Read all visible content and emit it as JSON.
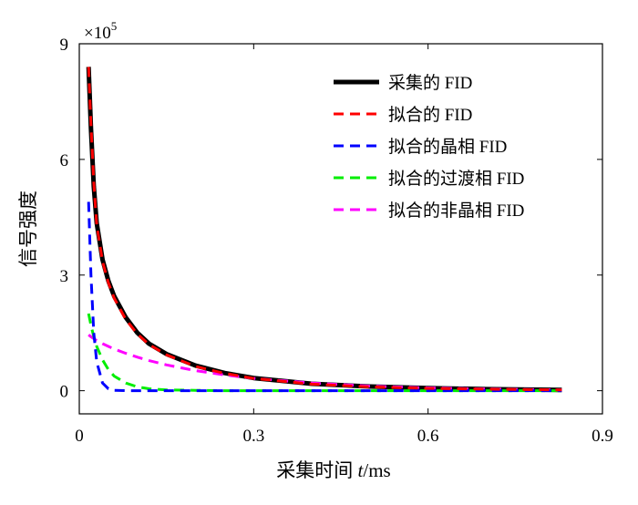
{
  "chart_data": {
    "type": "line",
    "title": "",
    "xlabel": "采集时间 t/ms",
    "xlabel_parts": [
      "采集时间 ",
      "t",
      "/ms"
    ],
    "ylabel": "信号强度",
    "y_multiplier": "×10",
    "y_multiplier_exp": "5",
    "xlim": [
      0,
      0.9
    ],
    "ylim": [
      -0.6,
      9
    ],
    "xticks": [
      0,
      0.3,
      0.6,
      0.9
    ],
    "xtick_labels": [
      "0",
      "0.3",
      "0.6",
      "0.9"
    ],
    "yticks": [
      0,
      3,
      6,
      9
    ],
    "ytick_labels": [
      "0",
      "3",
      "6",
      "9"
    ],
    "y_units": "×10^5",
    "grid": false,
    "legend_position": "top-right",
    "x": [
      0.016,
      0.02,
      0.025,
      0.03,
      0.04,
      0.05,
      0.06,
      0.08,
      0.1,
      0.12,
      0.15,
      0.2,
      0.25,
      0.3,
      0.4,
      0.5,
      0.6,
      0.7,
      0.83
    ],
    "series": [
      {
        "name": "采集的 FID",
        "color": "#000000",
        "style": "solid",
        "values": [
          8.4,
          6.8,
          5.3,
          4.35,
          3.4,
          2.85,
          2.45,
          1.9,
          1.5,
          1.22,
          0.95,
          0.65,
          0.46,
          0.33,
          0.18,
          0.11,
          0.07,
          0.04,
          0.02
        ]
      },
      {
        "name": "拟合的 FID",
        "color": "#ff0000",
        "style": "dashed",
        "values": [
          8.4,
          6.9,
          5.4,
          4.3,
          3.35,
          2.8,
          2.4,
          1.85,
          1.47,
          1.2,
          0.93,
          0.63,
          0.45,
          0.32,
          0.17,
          0.1,
          0.06,
          0.04,
          0.02
        ]
      },
      {
        "name": "拟合的晶相 FID",
        "color": "#0000ff",
        "style": "dashed",
        "values": [
          4.9,
          3.0,
          1.5,
          0.75,
          0.2,
          0.05,
          0.01,
          0,
          0,
          0,
          0,
          0,
          0,
          0,
          0,
          0,
          0,
          0,
          0
        ]
      },
      {
        "name": "拟合的过渡相 FID",
        "color": "#00ee00",
        "style": "dashed",
        "values": [
          2.0,
          1.7,
          1.4,
          1.15,
          0.8,
          0.55,
          0.38,
          0.2,
          0.1,
          0.05,
          0.02,
          0.01,
          0,
          0,
          0,
          0,
          0,
          0,
          0
        ]
      },
      {
        "name": "拟合的非晶相 FID",
        "color": "#ff00ff",
        "style": "dashed",
        "values": [
          1.45,
          1.4,
          1.35,
          1.3,
          1.22,
          1.15,
          1.08,
          0.97,
          0.87,
          0.78,
          0.67,
          0.52,
          0.41,
          0.32,
          0.2,
          0.12,
          0.075,
          0.045,
          0.02
        ]
      }
    ]
  }
}
